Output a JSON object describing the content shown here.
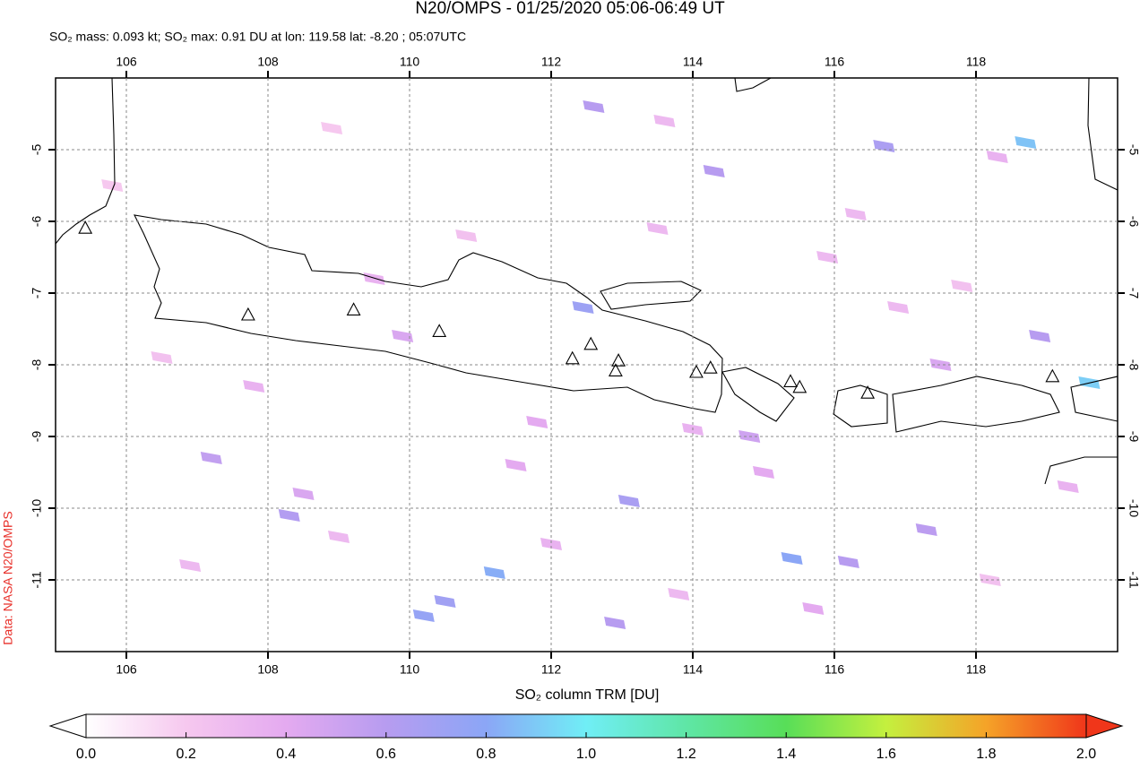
{
  "chart_data": {
    "type": "map",
    "title": "N20/OMPS - 01/25/2020 05:06-06:49 UT",
    "subtitle": "SO₂ mass: 0.093 kt; SO₂ max: 0.91 DU at lon: 119.58 lat: -8.20 ; 05:07UTC",
    "credit": "Data: NASA N20/OMPS",
    "xlim": [
      105,
      120
    ],
    "ylim": [
      -12,
      -4
    ],
    "xticks": [
      106,
      108,
      110,
      112,
      114,
      116,
      118
    ],
    "yticks": [
      -5,
      -6,
      -7,
      -8,
      -9,
      -10,
      -11
    ],
    "grid": true,
    "pixels": {
      "lon": [
        112.45,
        118.7,
        119.6,
        111.2,
        115.4,
        110.2,
        110.5,
        113.1,
        108.3,
        112.6,
        114.3,
        116.7,
        116.2,
        117.3,
        118.9,
        107.2,
        108.5,
        109.5,
        111.8,
        113.5,
        114.8,
        115.9,
        117.5,
        105.8,
        106.5,
        107.8,
        109.0,
        110.8,
        112.0,
        113.8,
        115.0,
        116.9,
        118.2,
        119.3,
        106.9,
        108.9,
        111.5,
        114.0,
        116.3,
        117.8,
        113.6,
        115.7,
        118.3,
        112.9,
        109.9
      ],
      "lat": [
        -7.2,
        -4.9,
        -8.25,
        -10.9,
        -10.7,
        -11.5,
        -11.3,
        -9.9,
        -10.1,
        -4.4,
        -5.3,
        -4.95,
        -10.75,
        -10.3,
        -7.6,
        -9.3,
        -9.8,
        -6.8,
        -8.8,
        -6.1,
        -9.0,
        -6.5,
        -8.0,
        -5.5,
        -7.9,
        -8.3,
        -10.4,
        -6.2,
        -10.5,
        -11.2,
        -9.5,
        -7.2,
        -11.0,
        -9.7,
        -10.8,
        -4.7,
        -9.4,
        -8.9,
        -5.9,
        -6.9,
        -4.6,
        -11.4,
        -5.1,
        -11.6,
        -7.6
      ],
      "values": [
        0.72,
        0.88,
        0.91,
        0.82,
        0.8,
        0.75,
        0.7,
        0.66,
        0.62,
        0.6,
        0.6,
        0.65,
        0.6,
        0.58,
        0.6,
        0.55,
        0.45,
        0.35,
        0.4,
        0.3,
        0.5,
        0.3,
        0.45,
        0.2,
        0.25,
        0.35,
        0.3,
        0.25,
        0.35,
        0.3,
        0.4,
        0.3,
        0.25,
        0.35,
        0.3,
        0.2,
        0.4,
        0.35,
        0.3,
        0.25,
        0.3,
        0.4,
        0.35,
        0.6,
        0.45
      ]
    },
    "volcanoes": {
      "lon": [
        105.42,
        107.72,
        109.21,
        110.42,
        112.3,
        112.56,
        112.95,
        112.91,
        114.05,
        114.25,
        115.38,
        115.51,
        116.47,
        119.08
      ],
      "lat": [
        -6.09,
        -7.3,
        -7.23,
        -7.53,
        -7.91,
        -7.71,
        -7.94,
        -8.08,
        -8.1,
        -8.04,
        -8.23,
        -8.31,
        -8.39,
        -8.16
      ]
    },
    "colorbar": {
      "label": "SO₂ column TRM [DU]",
      "lim": [
        0,
        2
      ],
      "ticks": [
        {
          "value": 0,
          "label": "0.0"
        },
        {
          "value": 0.2,
          "label": "0.2"
        },
        {
          "value": 0.4,
          "label": "0.4"
        },
        {
          "value": 0.6,
          "label": "0.6"
        },
        {
          "value": 0.8,
          "label": "0.8"
        },
        {
          "value": 1,
          "label": "1.0"
        },
        {
          "value": 1.2,
          "label": "1.2"
        },
        {
          "value": 1.4,
          "label": "1.4"
        },
        {
          "value": 1.6,
          "label": "1.6"
        },
        {
          "value": 1.8,
          "label": "1.8"
        },
        {
          "value": 2,
          "label": "2.0"
        }
      ],
      "colors": [
        "#ffffff",
        "#f6c8ef",
        "#e4aaf0",
        "#b79cf0",
        "#8ba6f6",
        "#70eef6",
        "#5fe6a6",
        "#58de58",
        "#c4f03e",
        "#f5a328",
        "#f0361a"
      ]
    }
  }
}
